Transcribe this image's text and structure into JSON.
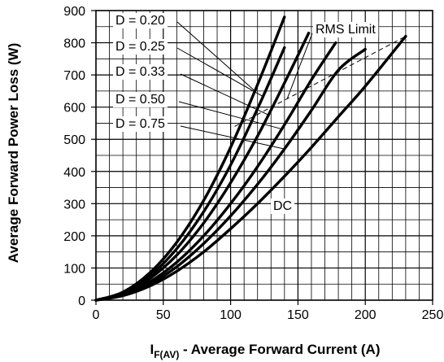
{
  "chart_data": {
    "type": "line",
    "title": "",
    "xlabel": {
      "symbol": "I",
      "subscript": "F(AV)",
      "text": " - Average Forward Current (A)"
    },
    "ylabel": "Average Forward Power Loss (W)",
    "xlim": [
      0,
      250
    ],
    "ylim": [
      0,
      900
    ],
    "xticks": [
      "0",
      "50",
      "100",
      "150",
      "200",
      "250"
    ],
    "yticks": [
      "0",
      "100",
      "200",
      "300",
      "400",
      "500",
      "600",
      "700",
      "800",
      "900"
    ],
    "grid": {
      "vertical_minor": true,
      "horizontal": true
    },
    "series": [
      {
        "name": "D = 0.20",
        "x": [
          0,
          20,
          40,
          60,
          80,
          100,
          120,
          140
        ],
        "y": [
          0,
          25,
          85,
          180,
          310,
          475,
          670,
          880
        ]
      },
      {
        "name": "D = 0.25",
        "x": [
          0,
          20,
          40,
          60,
          80,
          100,
          120,
          140
        ],
        "y": [
          0,
          22,
          75,
          160,
          275,
          420,
          595,
          785
        ]
      },
      {
        "name": "D = 0.33",
        "x": [
          0,
          20,
          40,
          60,
          80,
          100,
          120,
          140,
          158
        ],
        "y": [
          0,
          20,
          67,
          140,
          240,
          365,
          510,
          675,
          830
        ]
      },
      {
        "name": "D = 0.50",
        "x": [
          0,
          20,
          40,
          60,
          80,
          100,
          120,
          140,
          160,
          178
        ],
        "y": [
          0,
          17,
          57,
          118,
          200,
          300,
          415,
          545,
          685,
          800
        ]
      },
      {
        "name": "D = 0.75",
        "x": [
          0,
          20,
          40,
          60,
          80,
          100,
          120,
          140,
          160,
          180,
          200
        ],
        "y": [
          0,
          16,
          50,
          104,
          176,
          262,
          360,
          470,
          590,
          715,
          780
        ]
      },
      {
        "name": "DC",
        "x": [
          0,
          20,
          40,
          60,
          80,
          100,
          120,
          140,
          160,
          180,
          200,
          230
        ],
        "y": [
          0,
          14,
          44,
          90,
          150,
          222,
          300,
          385,
          475,
          570,
          665,
          820
        ]
      }
    ],
    "rms_limit": {
      "label": "RMS Limit",
      "x": [
        103,
        230
      ],
      "y": [
        540,
        820
      ]
    },
    "annotations": {
      "dc_label": "DC"
    }
  }
}
